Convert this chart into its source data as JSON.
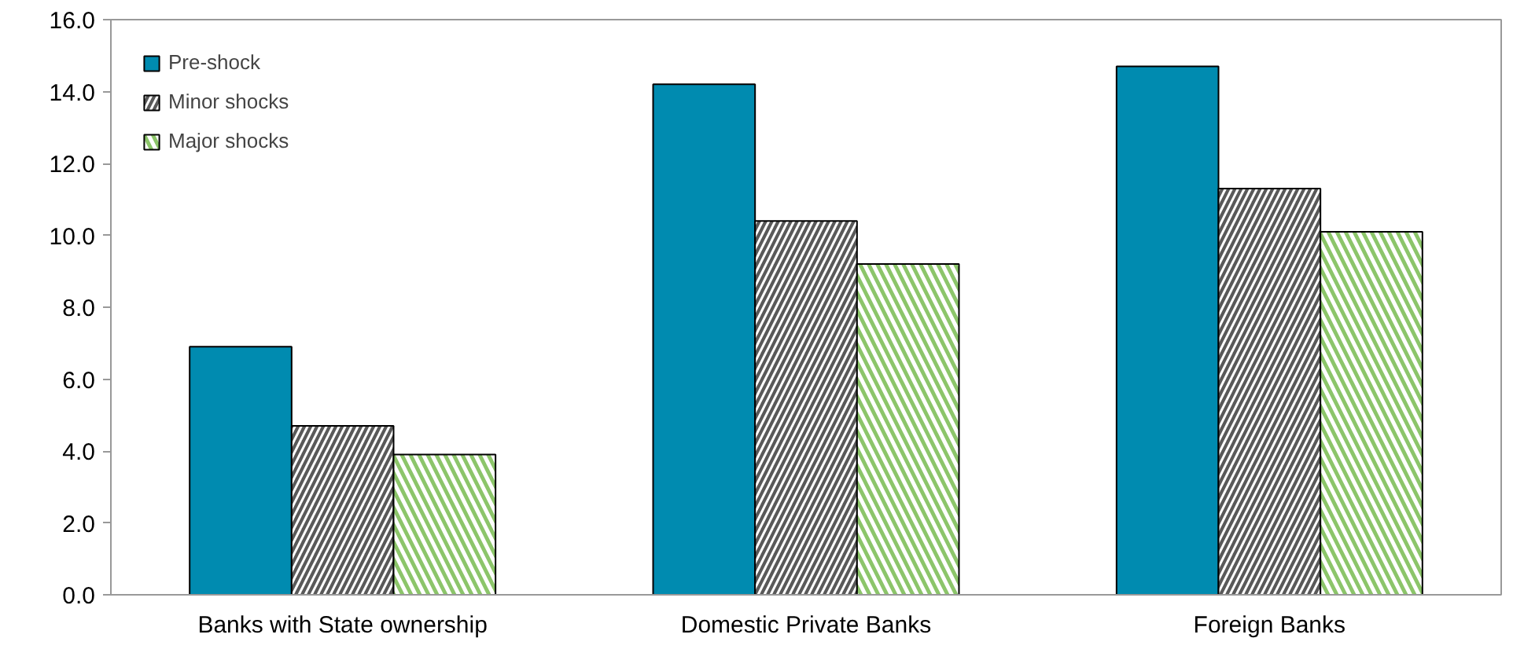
{
  "chart_data": {
    "type": "bar",
    "categories": [
      "Banks with State ownership",
      "Domestic Private Banks",
      "Foreign Banks"
    ],
    "series": [
      {
        "name": "Pre-shock",
        "color": "#008bb0",
        "values": [
          6.9,
          14.2,
          14.7
        ]
      },
      {
        "name": "Minor shocks",
        "color": "#595959",
        "values": [
          4.7,
          10.4,
          11.3
        ]
      },
      {
        "name": "Major shocks",
        "color": "#8cc56a",
        "values": [
          3.9,
          9.2,
          10.1
        ]
      }
    ],
    "ylim": [
      0,
      16
    ],
    "yticks": [
      {
        "value": 0,
        "label": "0.0"
      },
      {
        "value": 2,
        "label": "2.0"
      },
      {
        "value": 4,
        "label": "4.0"
      },
      {
        "value": 6,
        "label": "6.0"
      },
      {
        "value": 8,
        "label": "8.0"
      },
      {
        "value": 10,
        "label": "10.0"
      },
      {
        "value": 12,
        "label": "12.0"
      },
      {
        "value": 14,
        "label": "14.0"
      },
      {
        "value": 16,
        "label": "16.0"
      }
    ],
    "grid": false,
    "legend": "top left"
  }
}
